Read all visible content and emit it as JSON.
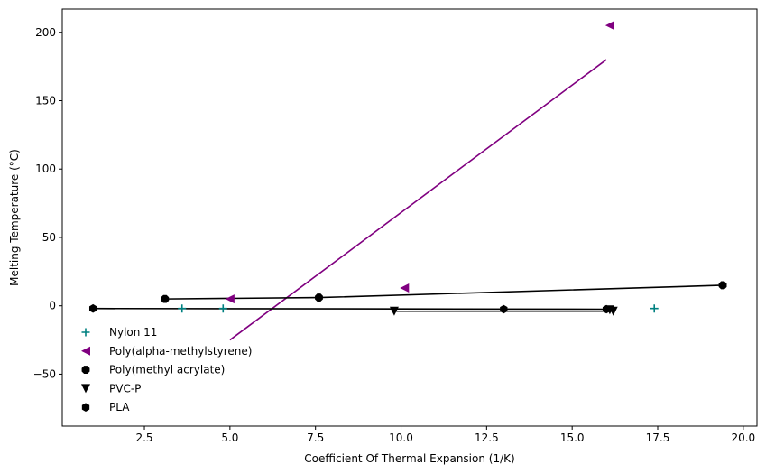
{
  "chart_data": {
    "type": "scatter",
    "xlabel": "Coefficient Of Thermal Expansion (1/K)",
    "ylabel": "Melting Temperature (°C)",
    "xlim": [
      0.1,
      20.4
    ],
    "ylim": [
      -88,
      217
    ],
    "xticks": [
      2.5,
      5.0,
      7.5,
      10.0,
      12.5,
      15.0,
      17.5,
      20.0
    ],
    "xtick_labels": [
      "2.5",
      "5.0",
      "7.5",
      "10.0",
      "12.5",
      "15.0",
      "17.5",
      "20.0"
    ],
    "yticks": [
      -50,
      0,
      50,
      100,
      150,
      200
    ],
    "ytick_labels": [
      "−50",
      "0",
      "50",
      "100",
      "150",
      "200"
    ],
    "grid": false,
    "legend_position": "lower-left",
    "series": [
      {
        "name": "Nylon 11",
        "marker": "plus",
        "color": "#008080",
        "points": [
          [
            3.6,
            -2
          ],
          [
            4.8,
            -2
          ],
          [
            17.4,
            -2
          ]
        ],
        "fit_line": null
      },
      {
        "name": "Poly(alpha-methylstyrene)",
        "marker": "triangle-left",
        "color": "#800080",
        "points": [
          [
            16.1,
            205
          ],
          [
            5.0,
            5
          ],
          [
            10.1,
            13
          ]
        ],
        "fit_line": [
          [
            5.0,
            -25
          ],
          [
            16.0,
            180
          ]
        ]
      },
      {
        "name": "Poly(methyl acrylate)",
        "marker": "octagon",
        "color": "#000000",
        "points": [
          [
            3.1,
            5
          ],
          [
            7.6,
            6
          ],
          [
            19.4,
            15
          ]
        ],
        "fit_line": [
          [
            3.1,
            5
          ],
          [
            7.6,
            6
          ],
          [
            19.4,
            15
          ]
        ]
      },
      {
        "name": "PVC-P",
        "marker": "triangle-down",
        "color": "#000000",
        "points": [
          [
            9.8,
            -4
          ],
          [
            16.2,
            -4
          ],
          [
            16.1,
            -3
          ]
        ],
        "fit_line": [
          [
            9.8,
            -4
          ],
          [
            16.2,
            -4
          ]
        ]
      },
      {
        "name": "PLA",
        "marker": "hexagon",
        "color": "#000000",
        "points": [
          [
            1.0,
            -2
          ],
          [
            13.0,
            -2.5
          ],
          [
            16.0,
            -2.5
          ]
        ],
        "fit_line": [
          [
            1.0,
            -2
          ],
          [
            16.0,
            -2.5
          ]
        ]
      }
    ]
  }
}
